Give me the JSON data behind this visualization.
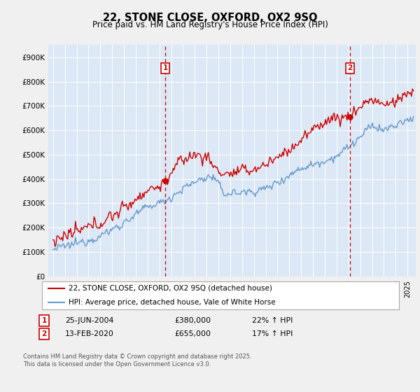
{
  "title": "22, STONE CLOSE, OXFORD, OX2 9SQ",
  "subtitle": "Price paid vs. HM Land Registry's House Price Index (HPI)",
  "background_color": "#dce8f5",
  "ylim": [
    0,
    950000
  ],
  "yticks": [
    0,
    100000,
    200000,
    300000,
    400000,
    500000,
    600000,
    700000,
    800000,
    900000
  ],
  "ytick_labels": [
    "£0",
    "£100K",
    "£200K",
    "£300K",
    "£400K",
    "£500K",
    "£600K",
    "£700K",
    "£800K",
    "£900K"
  ],
  "sale1_date": 2004.49,
  "sale1_price": 380000,
  "sale1_label": "1",
  "sale2_date": 2020.12,
  "sale2_price": 655000,
  "sale2_label": "2",
  "legend_property": "22, STONE CLOSE, OXFORD, OX2 9SQ (detached house)",
  "legend_hpi": "HPI: Average price, detached house, Vale of White Horse",
  "footnote": "Contains HM Land Registry data © Crown copyright and database right 2025.\nThis data is licensed under the Open Government Licence v3.0.",
  "line_color_property": "#cc0000",
  "line_color_hpi": "#6699cc",
  "vline_color": "#cc0000",
  "box_color": "#cc0000",
  "fig_bg": "#f0f0f0"
}
